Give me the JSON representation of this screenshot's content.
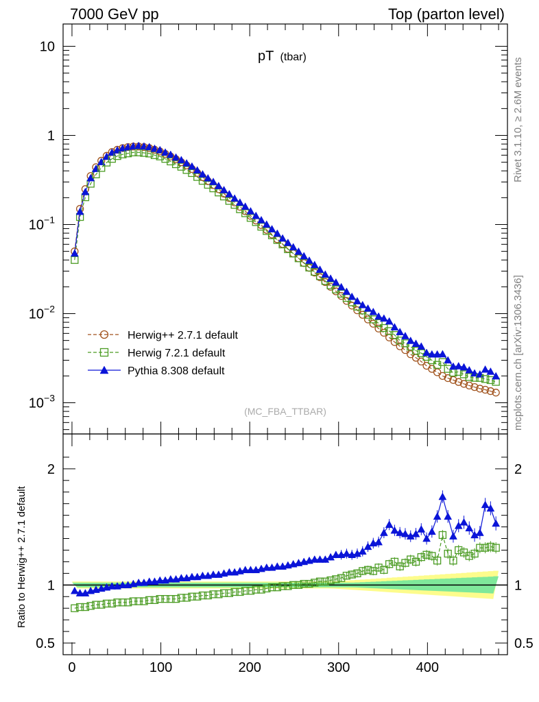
{
  "header": {
    "left": "7000 GeV pp",
    "right": "Top (parton level)"
  },
  "side_labels": {
    "rivet": "Rivet 3.1.10, ≥ 2.6M events",
    "mcplots": "mcplots.cern.ch [arXiv:1306.3436]"
  },
  "chart_data": [
    {
      "type": "line",
      "title": "pT",
      "title_sub": "(tbar)",
      "watermark": "(MC_FBA_TTBAR)",
      "xlim": [
        -10,
        490
      ],
      "ylim_log10": [
        -3.35,
        1.25
      ],
      "yscale": "log",
      "y_tick_labels": [
        {
          "value": 0.001,
          "base": "10",
          "exp": "−3"
        },
        {
          "value": 0.01,
          "base": "10",
          "exp": "−2"
        },
        {
          "value": 0.1,
          "base": "10",
          "exp": "−1"
        },
        {
          "value": 1,
          "base": "1",
          "exp": ""
        },
        {
          "value": 10,
          "base": "10",
          "exp": ""
        }
      ],
      "legend_position": "bottom-left",
      "series": [
        {
          "name": "Herwig++ 2.7.1 default",
          "color": "#a0521c",
          "marker": "circle",
          "line": "dashed"
        },
        {
          "name": "Herwig 7.2.1 default",
          "color": "#4a9b22",
          "marker": "square",
          "line": "dashed"
        },
        {
          "name": "Pythia 8.308 default",
          "color": "#0a14d8",
          "marker": "triangle",
          "line": "solid"
        }
      ],
      "x": [
        3,
        9,
        15,
        21,
        27,
        33,
        39,
        45,
        51,
        57,
        63,
        69,
        75,
        81,
        87,
        93,
        99,
        105,
        111,
        117,
        123,
        129,
        135,
        141,
        147,
        153,
        159,
        165,
        171,
        177,
        183,
        189,
        195,
        201,
        207,
        213,
        219,
        225,
        231,
        237,
        243,
        249,
        255,
        261,
        267,
        273,
        279,
        285,
        291,
        297,
        303,
        309,
        315,
        321,
        327,
        333,
        339,
        345,
        351,
        357,
        363,
        369,
        375,
        381,
        387,
        393,
        399,
        405,
        411,
        417,
        423,
        429,
        435,
        441,
        447,
        453,
        459,
        465,
        471,
        477
      ],
      "y_herwigpp": [
        0.05,
        0.15,
        0.25,
        0.35,
        0.44,
        0.52,
        0.59,
        0.65,
        0.69,
        0.72,
        0.74,
        0.75,
        0.75,
        0.74,
        0.72,
        0.69,
        0.66,
        0.62,
        0.58,
        0.54,
        0.5,
        0.46,
        0.42,
        0.38,
        0.34,
        0.307,
        0.277,
        0.249,
        0.222,
        0.198,
        0.177,
        0.158,
        0.141,
        0.125,
        0.111,
        0.0985,
        0.0872,
        0.0773,
        0.0684,
        0.0604,
        0.0534,
        0.0473,
        0.0418,
        0.0369,
        0.0326,
        0.0289,
        0.0256,
        0.0226,
        0.02,
        0.0178,
        0.0158,
        0.0139,
        0.0123,
        0.0109,
        0.0097,
        0.0086,
        0.0077,
        0.0068,
        0.0061,
        0.0054,
        0.0048,
        0.0043,
        0.0039,
        0.0035,
        0.0032,
        0.0029,
        0.0026,
        0.0024,
        0.0022,
        0.002,
        0.00189,
        0.0018,
        0.00171,
        0.00163,
        0.00156,
        0.0015,
        0.00144,
        0.0014,
        0.00135,
        0.0013
      ],
      "ratio": {
        "ylabel": "Ratio to Herwig++ 2.7.1 default",
        "ylim": [
          0.4,
          2.3
        ],
        "y_ticks": [
          0.5,
          1,
          2
        ],
        "y_tick_labels": [
          "0.5",
          "1",
          "2"
        ],
        "x_ticks": [
          0,
          100,
          200,
          300,
          400
        ],
        "x_tick_labels": [
          "0",
          "100",
          "200",
          "300",
          "400"
        ],
        "herwig7": [
          0.8,
          0.81,
          0.81,
          0.82,
          0.83,
          0.83,
          0.84,
          0.84,
          0.85,
          0.85,
          0.85,
          0.86,
          0.86,
          0.86,
          0.87,
          0.87,
          0.88,
          0.88,
          0.88,
          0.88,
          0.89,
          0.89,
          0.9,
          0.9,
          0.91,
          0.91,
          0.92,
          0.92,
          0.93,
          0.93,
          0.94,
          0.94,
          0.95,
          0.95,
          0.96,
          0.96,
          0.97,
          0.98,
          0.98,
          0.99,
          0.99,
          1.0,
          1.0,
          1.01,
          1.01,
          1.02,
          1.03,
          1.03,
          1.04,
          1.05,
          1.06,
          1.08,
          1.09,
          1.1,
          1.12,
          1.13,
          1.12,
          1.15,
          1.13,
          1.18,
          1.2,
          1.16,
          1.19,
          1.22,
          1.2,
          1.24,
          1.26,
          1.25,
          1.21,
          1.43,
          1.27,
          1.21,
          1.3,
          1.28,
          1.25,
          1.27,
          1.32,
          1.32,
          1.33,
          1.32
        ],
        "pythia": [
          0.95,
          0.93,
          0.93,
          0.95,
          0.96,
          0.97,
          0.98,
          0.99,
          0.99,
          1.0,
          1.0,
          1.01,
          1.02,
          1.02,
          1.03,
          1.03,
          1.04,
          1.04,
          1.05,
          1.05,
          1.06,
          1.06,
          1.07,
          1.07,
          1.08,
          1.08,
          1.09,
          1.09,
          1.1,
          1.11,
          1.11,
          1.12,
          1.13,
          1.13,
          1.13,
          1.14,
          1.15,
          1.15,
          1.16,
          1.16,
          1.17,
          1.18,
          1.19,
          1.2,
          1.21,
          1.22,
          1.22,
          1.22,
          1.24,
          1.26,
          1.26,
          1.27,
          1.26,
          1.27,
          1.29,
          1.33,
          1.36,
          1.37,
          1.45,
          1.52,
          1.47,
          1.45,
          1.44,
          1.42,
          1.44,
          1.48,
          1.4,
          1.46,
          1.59,
          1.76,
          1.59,
          1.42,
          1.51,
          1.54,
          1.49,
          1.43,
          1.45,
          1.69,
          1.66,
          1.53
        ],
        "herwig7_over_herwigpp_abs": true,
        "band_inner_halfwidth": [
          0.02,
          0.02,
          0.02,
          0.02,
          0.02,
          0.02,
          0.02,
          0.02,
          0.02,
          0.02,
          0.02,
          0.02,
          0.02,
          0.02,
          0.02,
          0.02,
          0.02,
          0.02,
          0.02,
          0.02,
          0.02,
          0.02,
          0.02,
          0.02,
          0.02,
          0.02,
          0.02,
          0.02,
          0.02,
          0.02,
          0.02,
          0.02,
          0.02,
          0.02,
          0.02,
          0.02,
          0.02,
          0.02,
          0.02,
          0.02,
          0.02,
          0.02,
          0.02,
          0.02,
          0.02,
          0.02,
          0.02,
          0.02,
          0.02,
          0.02,
          0.02,
          0.02,
          0.02,
          0.022,
          0.024,
          0.026,
          0.028,
          0.03,
          0.032,
          0.034,
          0.036,
          0.038,
          0.04,
          0.042,
          0.044,
          0.046,
          0.048,
          0.05,
          0.052,
          0.054,
          0.056,
          0.058,
          0.06,
          0.062,
          0.064,
          0.066,
          0.068,
          0.07,
          0.072,
          0.075
        ],
        "band_outer_halfwidth": [
          0.03,
          0.03,
          0.03,
          0.03,
          0.03,
          0.03,
          0.03,
          0.03,
          0.03,
          0.03,
          0.03,
          0.03,
          0.03,
          0.03,
          0.03,
          0.03,
          0.03,
          0.03,
          0.03,
          0.03,
          0.03,
          0.03,
          0.03,
          0.03,
          0.03,
          0.03,
          0.03,
          0.03,
          0.03,
          0.03,
          0.03,
          0.03,
          0.03,
          0.03,
          0.03,
          0.03,
          0.03,
          0.03,
          0.03,
          0.03,
          0.03,
          0.03,
          0.03,
          0.03,
          0.03,
          0.03,
          0.03,
          0.03,
          0.03,
          0.032,
          0.035,
          0.038,
          0.041,
          0.044,
          0.047,
          0.05,
          0.053,
          0.056,
          0.059,
          0.062,
          0.065,
          0.068,
          0.071,
          0.074,
          0.077,
          0.08,
          0.083,
          0.086,
          0.089,
          0.092,
          0.095,
          0.098,
          0.101,
          0.104,
          0.107,
          0.11,
          0.113,
          0.116,
          0.119,
          0.122
        ]
      }
    }
  ]
}
